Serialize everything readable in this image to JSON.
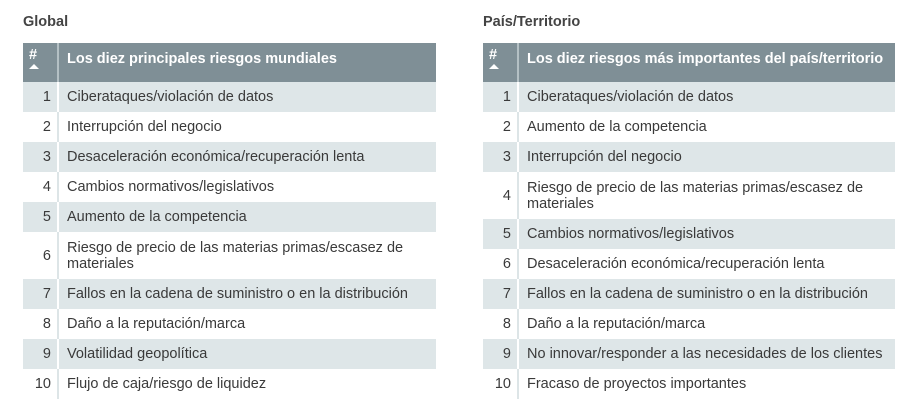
{
  "global": {
    "title": "Global",
    "header_num": "#",
    "header_title": "Los diez principales riesgos mundiales",
    "rows": [
      {
        "rank": "1",
        "risk": "Ciberataques/violación de datos"
      },
      {
        "rank": "2",
        "risk": "Interrupción del negocio"
      },
      {
        "rank": "3",
        "risk": "Desaceleración económica/recuperación lenta"
      },
      {
        "rank": "4",
        "risk": "Cambios normativos/legislativos"
      },
      {
        "rank": "5",
        "risk": "Aumento de la competencia"
      },
      {
        "rank": "6",
        "risk": "Riesgo de precio de las materias primas/escasez de materiales"
      },
      {
        "rank": "7",
        "risk": "Fallos en la cadena de suministro o en la distribución"
      },
      {
        "rank": "8",
        "risk": "Daño a la reputación/marca"
      },
      {
        "rank": "9",
        "risk": "Volatilidad geopolítica"
      },
      {
        "rank": "10",
        "risk": "Flujo de caja/riesgo de liquidez"
      }
    ]
  },
  "country": {
    "title": "País/Territorio",
    "header_num": "#",
    "header_title": "Los diez riesgos más importantes del país/territorio",
    "rows": [
      {
        "rank": "1",
        "risk": "Ciberataques/violación de datos"
      },
      {
        "rank": "2",
        "risk": "Aumento de la competencia"
      },
      {
        "rank": "3",
        "risk": "Interrupción del negocio"
      },
      {
        "rank": "4",
        "risk": "Riesgo de precio de las materias primas/escasez de materiales"
      },
      {
        "rank": "5",
        "risk": "Cambios normativos/legislativos"
      },
      {
        "rank": "6",
        "risk": "Desaceleración económica/recuperación lenta"
      },
      {
        "rank": "7",
        "risk": "Fallos en la cadena de suministro o en la distribución"
      },
      {
        "rank": "8",
        "risk": "Daño a la reputación/marca"
      },
      {
        "rank": "9",
        "risk": "No innovar/responder a las necesidades de los clientes"
      },
      {
        "rank": "10",
        "risk": "Fracaso de proyectos importantes"
      }
    ]
  },
  "colors": {
    "header_bg": "#7f8f96",
    "stripe": "#dee6e8"
  }
}
